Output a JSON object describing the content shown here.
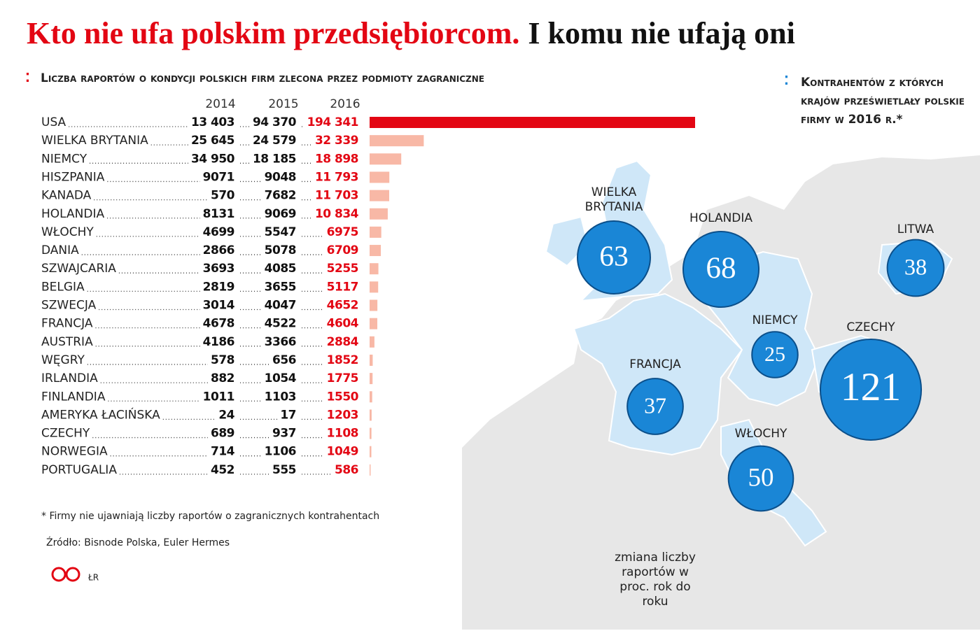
{
  "chart_data": [
    {
      "type": "hbar-table",
      "title": "Kto nie ufa polskim przedsiębiorcom.",
      "title_tail": "I komu nie ufają oni",
      "subtitle": "Liczba raportów o kondycji polskich firm zlecona przez podmioty zagraniczne",
      "categories": [
        "USA",
        "WIELKA BRYTANIA",
        "NIEMCY",
        "HISZPANIA",
        "KANADA",
        "HOLANDIA",
        "WŁOCHY",
        "DANIA",
        "SZWAJCARIA",
        "BELGIA",
        "SZWECJA",
        "FRANCJA",
        "AUSTRIA",
        "WĘGRY",
        "IRLANDIA",
        "FINLANDIA",
        "AMERYKA ŁACIŃSKA",
        "CZECHY",
        "NORWEGIA",
        "PORTUGALIA"
      ],
      "series": [
        {
          "name": "2014",
          "values": [
            13403,
            25645,
            34950,
            9071,
            570,
            8131,
            4699,
            2866,
            3693,
            2819,
            3014,
            4678,
            4186,
            578,
            882,
            1011,
            24,
            689,
            714,
            452
          ],
          "value_labels": [
            "13 403",
            "25 645",
            "34 950",
            "9071",
            "570",
            "8131",
            "4699",
            "2866",
            "3693",
            "2819",
            "3014",
            "4678",
            "4186",
            "578",
            "882",
            "1011",
            "24",
            "689",
            "714",
            "452"
          ]
        },
        {
          "name": "2015",
          "values": [
            94370,
            24579,
            18185,
            9048,
            7682,
            9069,
            5547,
            5078,
            4085,
            3655,
            4047,
            4522,
            3366,
            656,
            1054,
            1103,
            17,
            937,
            1106,
            555
          ],
          "value_labels": [
            "94 370",
            "24 579",
            "18 185",
            "9048",
            "7682",
            "9069",
            "5547",
            "5078",
            "4085",
            "3655",
            "4047",
            "4522",
            "3366",
            "656",
            "1054",
            "1103",
            "17",
            "937",
            "1106",
            "555"
          ]
        },
        {
          "name": "2016",
          "label_color": "#e30613",
          "values": [
            194341,
            32339,
            18898,
            11793,
            11703,
            10834,
            6975,
            6709,
            5255,
            5117,
            4652,
            4604,
            2884,
            1852,
            1775,
            1550,
            1203,
            1108,
            1049,
            586
          ],
          "value_labels": [
            "194 341",
            "32 339",
            "18 898",
            "11 793",
            "11 703",
            "10 834",
            "6975",
            "6709",
            "5255",
            "5117",
            "4652",
            "4604",
            "2884",
            "1852",
            "1775",
            "1550",
            "1203",
            "1108",
            "1049",
            "586"
          ],
          "colors": [
            "#e30613",
            "#f8b8a6",
            "#f8b8a6",
            "#f8b8a6",
            "#f8b8a6",
            "#f8b8a6",
            "#f8b8a6",
            "#f8b8a6",
            "#f8b8a6",
            "#f8b8a6",
            "#f8b8a6",
            "#f8b8a6",
            "#f8b8a6",
            "#f8b8a6",
            "#f8b8a6",
            "#f8b8a6",
            "#f8b8a6",
            "#f8b8a6",
            "#f8b8a6",
            "#f8b8a6"
          ]
        }
      ],
      "footnote": "* Firmy nie ujawniają liczby raportów o zagranicznych kontrahentach",
      "source": "Źródło: Bisnode Polska, Euler Hermes",
      "logo": "©P",
      "author": "ŁR"
    },
    {
      "type": "bubble-map",
      "title": "Kontrahentów z których krajów prześwietlały polskie firmy w 2016 r.*",
      "note": "zmiana liczby raportów w proc. rok do roku",
      "color": "#1a86d6",
      "categories": [
        "WIELKA BRYTANIA",
        "HOLANDIA",
        "LITWA",
        "NIEMCY",
        "CZECHY",
        "FRANCJA",
        "WŁOCHY"
      ],
      "values": [
        63,
        68,
        38,
        25,
        121,
        37,
        50
      ]
    }
  ]
}
